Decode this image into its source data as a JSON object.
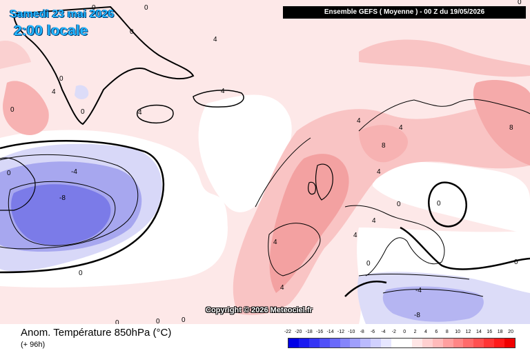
{
  "date_title": "Samedi 23 mai 2026",
  "time_title": "2:00 locale",
  "header": "Ensemble GEFS  ( Moyenne )  -  00 Z du 19/05/2026",
  "copyright": "Copyright © 2026 Meteociel.fr",
  "variable_title": "Anom. Température 850hPa (°C)",
  "lead_time": "(+ 96h)",
  "contour_labels": [
    "0",
    "0",
    "0",
    "4",
    "4",
    "0",
    "0",
    "0",
    "4",
    "4",
    "4",
    "-4",
    "-8",
    "0",
    "0",
    "0",
    "4",
    "4",
    "4",
    "8",
    "0",
    "4",
    "8",
    "4",
    "0",
    "0",
    "-4",
    "-8",
    "0",
    "0",
    "0",
    "0",
    "0",
    "4"
  ],
  "scale": {
    "labels": [
      "-22",
      "-20",
      "-18",
      "-16",
      "-14",
      "-12",
      "-10",
      "-8",
      "-6",
      "-4",
      "-2",
      "0",
      "2",
      "4",
      "6",
      "8",
      "10",
      "12",
      "14",
      "16",
      "18",
      "20"
    ],
    "colors": [
      "#0000e6",
      "#1a1af0",
      "#3535f5",
      "#5050f8",
      "#6a6afa",
      "#8585fb",
      "#9f9ffc",
      "#babafd",
      "#d0d0fe",
      "#e6e6ff",
      "#ffffff",
      "#ffffff",
      "#ffe6e6",
      "#ffd0d0",
      "#ffbaba",
      "#ff9f9f",
      "#ff8585",
      "#ff6a6a",
      "#ff5050",
      "#ff3535",
      "#ff1a1a",
      "#f00000"
    ]
  },
  "colors": {
    "land_outline": "#000000",
    "warm_light": "#fcdcdc",
    "warm_mid": "#f5a3a3",
    "cold_light": "#dcdcf8",
    "cold_mid": "#7b7be8",
    "title_color": "#22b5ff"
  }
}
